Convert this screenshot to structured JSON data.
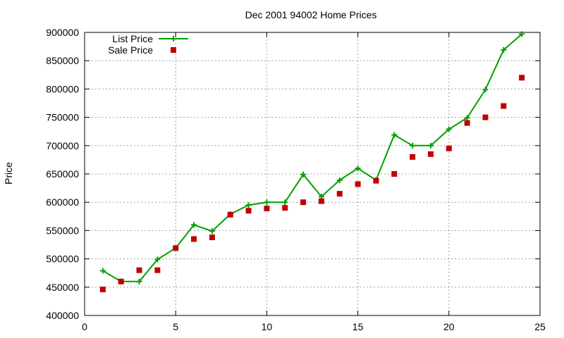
{
  "chart_data": {
    "type": "line",
    "title": "Dec 2001 94002 Home Prices",
    "xlabel": "",
    "ylabel": "Price",
    "xlim": [
      0,
      25
    ],
    "ylim": [
      400000,
      900000
    ],
    "x_ticks": [
      0,
      5,
      10,
      15,
      20,
      25
    ],
    "y_ticks": [
      400000,
      450000,
      500000,
      550000,
      600000,
      650000,
      700000,
      750000,
      800000,
      850000,
      900000
    ],
    "grid": true,
    "legend_position": "top-left",
    "x": [
      1,
      2,
      3,
      4,
      5,
      6,
      7,
      8,
      9,
      10,
      11,
      12,
      13,
      14,
      15,
      16,
      17,
      18,
      19,
      20,
      21,
      22,
      23,
      24
    ],
    "series": [
      {
        "name": "List Price",
        "style": "lines+points",
        "color": "#00a000",
        "values": [
          479000,
          460000,
          460000,
          499000,
          519000,
          560000,
          549000,
          579000,
          595000,
          600000,
          600000,
          649000,
          610000,
          639000,
          660000,
          639000,
          719000,
          700000,
          700000,
          729000,
          749000,
          799000,
          869000,
          897000
        ]
      },
      {
        "name": "Sale Price",
        "style": "points",
        "color": "#c00000",
        "values": [
          446000,
          460000,
          480000,
          480000,
          519000,
          535000,
          538000,
          578000,
          585000,
          589000,
          590000,
          600000,
          602000,
          615000,
          632000,
          638000,
          650000,
          680000,
          685000,
          695000,
          740000,
          750000,
          770000,
          820000
        ]
      }
    ]
  }
}
